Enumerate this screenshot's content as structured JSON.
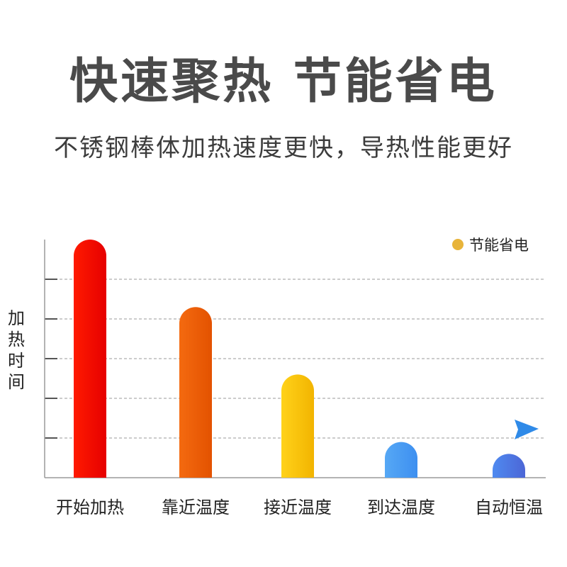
{
  "header": {
    "title": "快速聚热 节能省电",
    "subtitle": "不锈钢棒体加热速度更快，导热性能更好"
  },
  "legend": {
    "label": "节能省电",
    "color": "#e8b43a"
  },
  "chart_data": {
    "type": "bar",
    "ylabel": "加热时间",
    "categories": [
      "开始加热",
      "靠近温度",
      "接近温度",
      "到达温度",
      "自动恒温"
    ],
    "values": [
      6,
      4.3,
      2.6,
      0.9,
      0.6
    ],
    "ylim": [
      0,
      6
    ],
    "grid": true,
    "legend_position": "top-right",
    "colors": [
      [
        "#ff1a00",
        "#e60000"
      ],
      [
        "#f46a10",
        "#e35200"
      ],
      [
        "#ffd21a",
        "#f2b400"
      ],
      [
        "#56a8f5",
        "#3d8ff0"
      ],
      [
        "#4f8af0",
        "#4c66d6"
      ]
    ]
  }
}
